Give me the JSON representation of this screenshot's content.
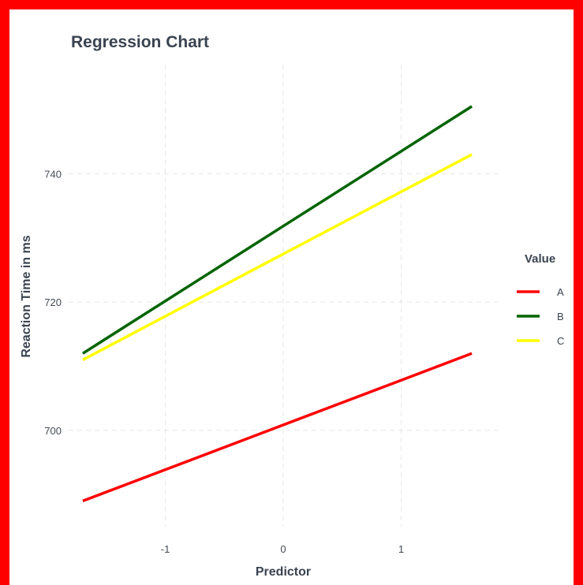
{
  "chart_data": {
    "type": "line",
    "title": "Regression Chart",
    "xlabel": "Predictor",
    "ylabel": "Reaction Time in ms",
    "xlim": [
      -1.82,
      1.82
    ],
    "ylim": [
      685,
      757
    ],
    "xticks": [
      -1,
      0,
      1
    ],
    "yticks": [
      700,
      720,
      740
    ],
    "xtick_labels": [
      "-1",
      "0",
      "1"
    ],
    "ytick_labels": [
      "700",
      "720",
      "740"
    ],
    "grid": true,
    "legend": {
      "title": "Value",
      "placement": "right"
    },
    "series": [
      {
        "name": "A",
        "color": "#ff0000",
        "x": [
          -1.7,
          1.6
        ],
        "y": [
          689,
          712
        ]
      },
      {
        "name": "B",
        "color": "#006400",
        "x": [
          -1.7,
          1.6
        ],
        "y": [
          712,
          750.5
        ]
      },
      {
        "name": "C",
        "color": "#ffff00",
        "x": [
          -1.7,
          1.6
        ],
        "y": [
          711,
          743
        ]
      }
    ]
  }
}
